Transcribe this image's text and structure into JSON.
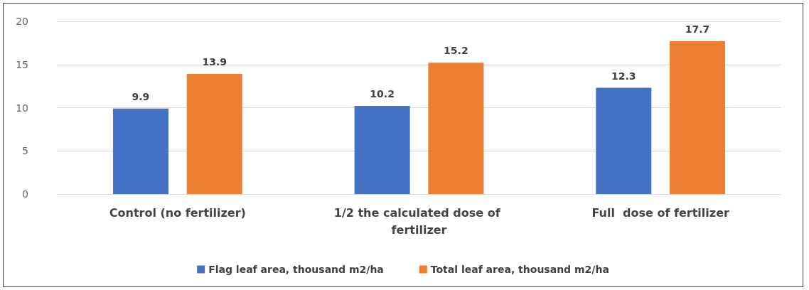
{
  "chart_data": {
    "type": "bar",
    "categories": [
      "Control (no fertilizer)",
      "1/2 the calculated dose of fertilizer",
      "Full  dose of fertilizer"
    ],
    "series": [
      {
        "name": "Flag leaf area, thousand m2/ha",
        "color": "#4472c4",
        "values": [
          9.9,
          10.2,
          12.3
        ]
      },
      {
        "name": "Total leaf area, thousand m2/ha",
        "color": "#ed7d31",
        "values": [
          13.9,
          15.2,
          17.7
        ]
      }
    ],
    "ylim": [
      0,
      20
    ],
    "yticks": [
      0,
      5,
      10,
      15,
      20
    ],
    "grid": "y",
    "legend": "bottom",
    "data_labels": true
  }
}
